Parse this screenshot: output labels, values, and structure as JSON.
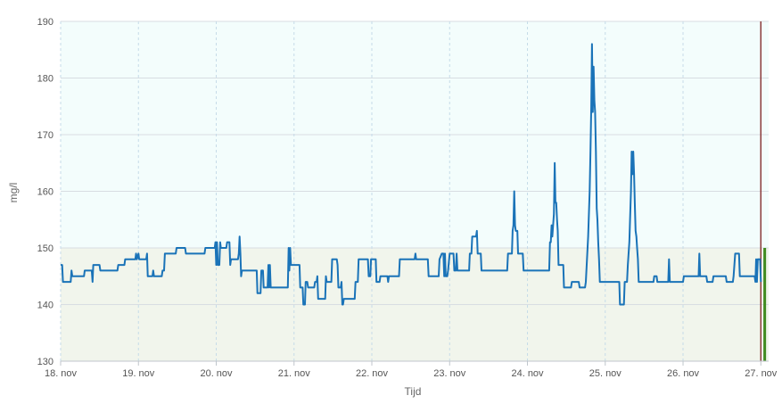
{
  "chart_data": {
    "type": "line",
    "title": "",
    "xlabel": "Tijd",
    "ylabel": "mg/l",
    "ylim": [
      130,
      190
    ],
    "yticks": [
      130,
      140,
      150,
      160,
      170,
      180,
      190
    ],
    "xlim": [
      18.0,
      27.1
    ],
    "xticks": [
      {
        "x": 18,
        "label": "18. nov"
      },
      {
        "x": 19,
        "label": "19. nov"
      },
      {
        "x": 20,
        "label": "20. nov"
      },
      {
        "x": 21,
        "label": "21. nov"
      },
      {
        "x": 22,
        "label": "22. nov"
      },
      {
        "x": 23,
        "label": "23. nov"
      },
      {
        "x": 24,
        "label": "24. nov"
      },
      {
        "x": 25,
        "label": "25. nov"
      },
      {
        "x": 26,
        "label": "26. nov"
      },
      {
        "x": 27,
        "label": "27. nov"
      }
    ],
    "grid": true,
    "bands": [
      {
        "from": 150,
        "to": 190,
        "color": "#f3fdfc"
      },
      {
        "from": 130,
        "to": 150,
        "color": "#f1f5ec"
      }
    ],
    "series": [
      {
        "color": "#1a73b8",
        "points": [
          [
            18.0,
            147
          ],
          [
            18.02,
            147
          ],
          [
            18.03,
            144
          ],
          [
            18.13,
            144
          ],
          [
            18.14,
            146
          ],
          [
            18.15,
            145
          ],
          [
            18.3,
            145
          ],
          [
            18.31,
            146
          ],
          [
            18.4,
            146
          ],
          [
            18.41,
            144
          ],
          [
            18.42,
            147
          ],
          [
            18.5,
            147
          ],
          [
            18.51,
            146
          ],
          [
            18.73,
            146
          ],
          [
            18.74,
            147
          ],
          [
            18.82,
            147
          ],
          [
            18.83,
            148
          ],
          [
            18.96,
            148
          ],
          [
            18.97,
            149
          ],
          [
            18.98,
            148
          ],
          [
            19.0,
            149
          ],
          [
            19.01,
            148
          ],
          [
            19.1,
            148
          ],
          [
            19.11,
            149
          ],
          [
            19.12,
            145
          ],
          [
            19.18,
            145
          ],
          [
            19.19,
            146
          ],
          [
            19.2,
            145
          ],
          [
            19.3,
            145
          ],
          [
            19.31,
            146
          ],
          [
            19.33,
            146
          ],
          [
            19.34,
            149
          ],
          [
            19.48,
            149
          ],
          [
            19.49,
            150
          ],
          [
            19.6,
            150
          ],
          [
            19.61,
            149
          ],
          [
            19.85,
            149
          ],
          [
            19.86,
            150
          ],
          [
            19.98,
            150
          ],
          [
            19.99,
            151
          ],
          [
            20.0,
            147
          ],
          [
            20.01,
            151
          ],
          [
            20.02,
            147
          ],
          [
            20.04,
            147
          ],
          [
            20.05,
            151
          ],
          [
            20.06,
            150
          ],
          [
            20.13,
            150
          ],
          [
            20.14,
            151
          ],
          [
            20.17,
            151
          ],
          [
            20.18,
            147
          ],
          [
            20.19,
            148
          ],
          [
            20.28,
            148
          ],
          [
            20.29,
            149
          ],
          [
            20.3,
            152
          ],
          [
            20.31,
            149
          ],
          [
            20.32,
            145
          ],
          [
            20.33,
            146
          ],
          [
            20.52,
            146
          ],
          [
            20.53,
            142
          ],
          [
            20.57,
            142
          ],
          [
            20.58,
            146
          ],
          [
            20.6,
            146
          ],
          [
            20.61,
            143
          ],
          [
            20.66,
            143
          ],
          [
            20.67,
            147
          ],
          [
            20.68,
            143
          ],
          [
            20.69,
            147
          ],
          [
            20.7,
            143
          ],
          [
            20.92,
            143
          ],
          [
            20.93,
            150
          ],
          [
            20.94,
            146
          ],
          [
            20.95,
            150
          ],
          [
            20.96,
            147
          ],
          [
            21.07,
            147
          ],
          [
            21.08,
            143
          ],
          [
            21.11,
            143
          ],
          [
            21.12,
            140
          ],
          [
            21.14,
            140
          ],
          [
            21.15,
            144
          ],
          [
            21.17,
            144
          ],
          [
            21.18,
            143
          ],
          [
            21.26,
            143
          ],
          [
            21.27,
            144
          ],
          [
            21.29,
            144
          ],
          [
            21.3,
            145
          ],
          [
            21.31,
            141
          ],
          [
            21.4,
            141
          ],
          [
            21.41,
            145
          ],
          [
            21.42,
            144
          ],
          [
            21.48,
            144
          ],
          [
            21.49,
            148
          ],
          [
            21.55,
            148
          ],
          [
            21.56,
            147
          ],
          [
            21.57,
            143
          ],
          [
            21.6,
            143
          ],
          [
            21.61,
            144
          ],
          [
            21.62,
            140
          ],
          [
            21.63,
            140
          ],
          [
            21.64,
            141
          ],
          [
            21.78,
            141
          ],
          [
            21.79,
            144
          ],
          [
            21.82,
            144
          ],
          [
            21.83,
            148
          ],
          [
            21.95,
            148
          ],
          [
            21.96,
            145
          ],
          [
            21.98,
            145
          ],
          [
            21.99,
            148
          ],
          [
            22.05,
            148
          ],
          [
            22.06,
            144
          ],
          [
            22.1,
            144
          ],
          [
            22.11,
            145
          ],
          [
            22.2,
            145
          ],
          [
            22.21,
            144
          ],
          [
            22.22,
            145
          ],
          [
            22.35,
            145
          ],
          [
            22.36,
            148
          ],
          [
            22.55,
            148
          ],
          [
            22.56,
            149
          ],
          [
            22.57,
            148
          ],
          [
            22.72,
            148
          ],
          [
            22.73,
            145
          ],
          [
            22.86,
            145
          ],
          [
            22.87,
            148
          ],
          [
            22.9,
            149
          ],
          [
            22.92,
            149
          ],
          [
            22.93,
            145
          ],
          [
            22.94,
            149
          ],
          [
            22.95,
            145
          ],
          [
            22.97,
            145
          ],
          [
            22.98,
            146
          ],
          [
            23.0,
            149
          ],
          [
            23.05,
            149
          ],
          [
            23.06,
            146
          ],
          [
            23.08,
            146
          ],
          [
            23.09,
            149
          ],
          [
            23.1,
            146
          ],
          [
            23.25,
            146
          ],
          [
            23.26,
            149
          ],
          [
            23.28,
            149
          ],
          [
            23.29,
            152
          ],
          [
            23.34,
            152
          ],
          [
            23.35,
            153
          ],
          [
            23.36,
            149
          ],
          [
            23.4,
            149
          ],
          [
            23.41,
            146
          ],
          [
            23.74,
            146
          ],
          [
            23.75,
            149
          ],
          [
            23.8,
            149
          ],
          [
            23.81,
            153
          ],
          [
            23.82,
            154
          ],
          [
            23.83,
            160
          ],
          [
            23.84,
            154
          ],
          [
            23.85,
            153
          ],
          [
            23.87,
            153
          ],
          [
            23.88,
            149
          ],
          [
            23.94,
            149
          ],
          [
            23.95,
            146
          ],
          [
            24.28,
            146
          ],
          [
            24.29,
            151
          ],
          [
            24.3,
            151
          ],
          [
            24.31,
            154
          ],
          [
            24.32,
            152
          ],
          [
            24.34,
            156
          ],
          [
            24.35,
            165
          ],
          [
            24.36,
            158
          ],
          [
            24.37,
            158
          ],
          [
            24.38,
            155
          ],
          [
            24.39,
            153
          ],
          [
            24.4,
            147
          ],
          [
            24.46,
            147
          ],
          [
            24.47,
            143
          ],
          [
            24.56,
            143
          ],
          [
            24.57,
            144
          ],
          [
            24.66,
            144
          ],
          [
            24.67,
            143
          ],
          [
            24.74,
            143
          ],
          [
            24.75,
            144
          ],
          [
            24.78,
            152
          ],
          [
            24.8,
            160
          ],
          [
            24.81,
            167
          ],
          [
            24.82,
            175
          ],
          [
            24.83,
            186
          ],
          [
            24.84,
            174
          ],
          [
            24.85,
            182
          ],
          [
            24.86,
            176
          ],
          [
            24.87,
            174
          ],
          [
            24.88,
            167
          ],
          [
            24.89,
            157
          ],
          [
            24.9,
            155
          ],
          [
            24.91,
            151
          ],
          [
            24.92,
            148
          ],
          [
            24.93,
            144
          ],
          [
            25.18,
            144
          ],
          [
            25.19,
            140
          ],
          [
            25.24,
            140
          ],
          [
            25.25,
            144
          ],
          [
            25.28,
            144
          ],
          [
            25.29,
            147
          ],
          [
            25.31,
            151
          ],
          [
            25.33,
            160
          ],
          [
            25.34,
            167
          ],
          [
            25.35,
            163
          ],
          [
            25.36,
            167
          ],
          [
            25.37,
            163
          ],
          [
            25.38,
            158
          ],
          [
            25.39,
            153
          ],
          [
            25.4,
            152
          ],
          [
            25.41,
            150
          ],
          [
            25.42,
            148
          ],
          [
            25.43,
            144
          ],
          [
            25.62,
            144
          ],
          [
            25.63,
            145
          ],
          [
            25.66,
            145
          ],
          [
            25.67,
            144
          ],
          [
            25.81,
            144
          ],
          [
            25.82,
            148
          ],
          [
            25.83,
            144
          ],
          [
            26.0,
            144
          ],
          [
            26.01,
            145
          ],
          [
            26.2,
            145
          ],
          [
            26.21,
            149
          ],
          [
            26.22,
            145
          ],
          [
            26.3,
            145
          ],
          [
            26.31,
            144
          ],
          [
            26.38,
            144
          ],
          [
            26.39,
            145
          ],
          [
            26.55,
            145
          ],
          [
            26.56,
            144
          ],
          [
            26.64,
            144
          ],
          [
            26.65,
            145
          ],
          [
            26.67,
            149
          ],
          [
            26.72,
            149
          ],
          [
            26.73,
            145
          ],
          [
            26.92,
            145
          ],
          [
            26.93,
            144
          ],
          [
            26.94,
            148
          ],
          [
            26.95,
            144
          ],
          [
            26.96,
            148
          ],
          [
            26.99,
            148
          ],
          [
            27.0,
            144
          ]
        ]
      }
    ],
    "right_markers": [
      {
        "x": 27.0,
        "y_from": 130,
        "y_to": 190,
        "color": "#8b3a3a"
      },
      {
        "x": 27.05,
        "y_from": 130,
        "y_to": 150,
        "color": "#3f8a1f"
      }
    ]
  }
}
